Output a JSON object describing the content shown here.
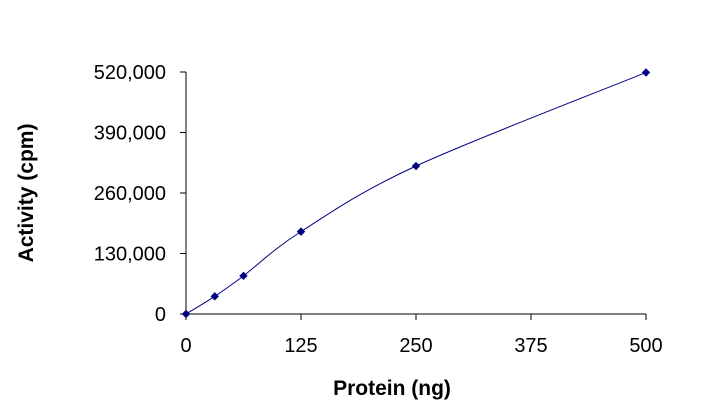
{
  "chart_data": {
    "type": "line",
    "title": "",
    "xlabel": "Protein (ng)",
    "ylabel": "Activity (cpm)",
    "xlim": [
      0,
      500
    ],
    "ylim": [
      0,
      520000
    ],
    "xticks": [
      0,
      125,
      250,
      375,
      500
    ],
    "xtick_labels": [
      "0",
      "125",
      "250",
      "375",
      "500"
    ],
    "yticks": [
      0,
      130000,
      260000,
      390000,
      520000
    ],
    "ytick_labels": [
      "0",
      "130,000",
      "260,000",
      "390,000",
      "520,000"
    ],
    "grid": false,
    "legend": "none",
    "series": [
      {
        "x": [
          0,
          31.25,
          62.5,
          125,
          250,
          500
        ],
        "y": [
          0,
          38000,
          82000,
          177000,
          318000,
          519000
        ],
        "color": "#000080",
        "marker": "diamond",
        "smooth": true
      }
    ]
  }
}
